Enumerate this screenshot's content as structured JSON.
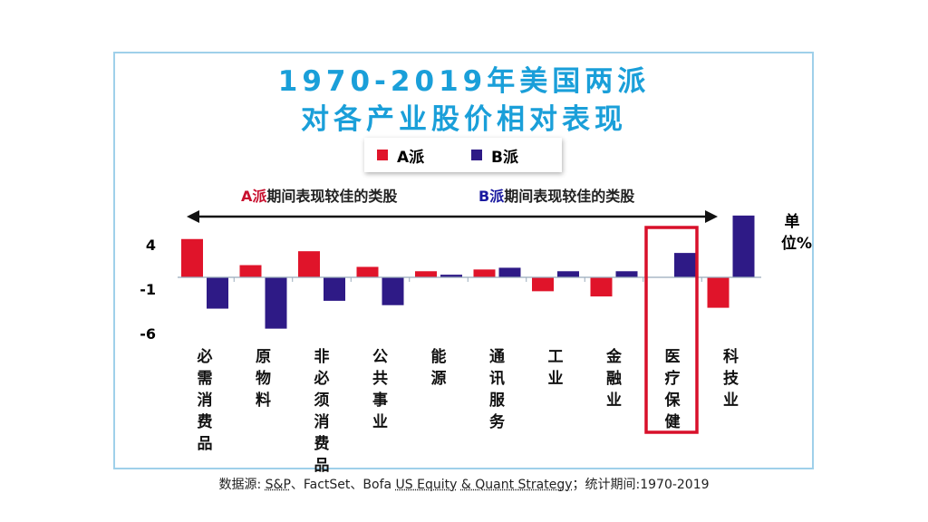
{
  "chart_data": {
    "type": "bar",
    "title": [
      "1970-2019年美国两派",
      "对各产业股价相对表现"
    ],
    "categories": [
      "必需消费品",
      "原物料",
      "非必须消费品",
      "公共事业",
      "能源",
      "通讯服务",
      "工业",
      "金融业",
      "医疗保健",
      "科技业"
    ],
    "series": [
      {
        "name": "A派",
        "color": "#e0142a",
        "values": [
          4.4,
          1.4,
          3.0,
          1.2,
          0.7,
          0.9,
          -1.6,
          -2.2,
          0.0,
          -3.5
        ]
      },
      {
        "name": "B派",
        "color": "#2e1a86",
        "values": [
          -3.6,
          -5.9,
          -2.7,
          -3.2,
          0.3,
          1.1,
          0.7,
          0.7,
          2.8,
          7.1
        ]
      }
    ],
    "yticks": [
      4,
      -1,
      -6
    ],
    "ytick_labels": [
      "4",
      "-1",
      "-6"
    ],
    "ylabel": "单位%",
    "ylim": [
      -6,
      7.5
    ],
    "highlighted_category": "医疗保健",
    "annotation_left_prefix": "A派",
    "annotation_left_suffix": "期间表现较佳的类股",
    "annotation_right_prefix": "B派",
    "annotation_right_suffix": "期间表现较佳的类股",
    "legend_position": "top-center"
  },
  "footer": {
    "prefix": "数据源: ",
    "s1": "S&P",
    "sep1": "、FactSet、Bofa ",
    "s2": "US Equity",
    "sep2": " ",
    "s3": "& Quant Strategy",
    "suffix": "；统计期间:1970-2019"
  }
}
